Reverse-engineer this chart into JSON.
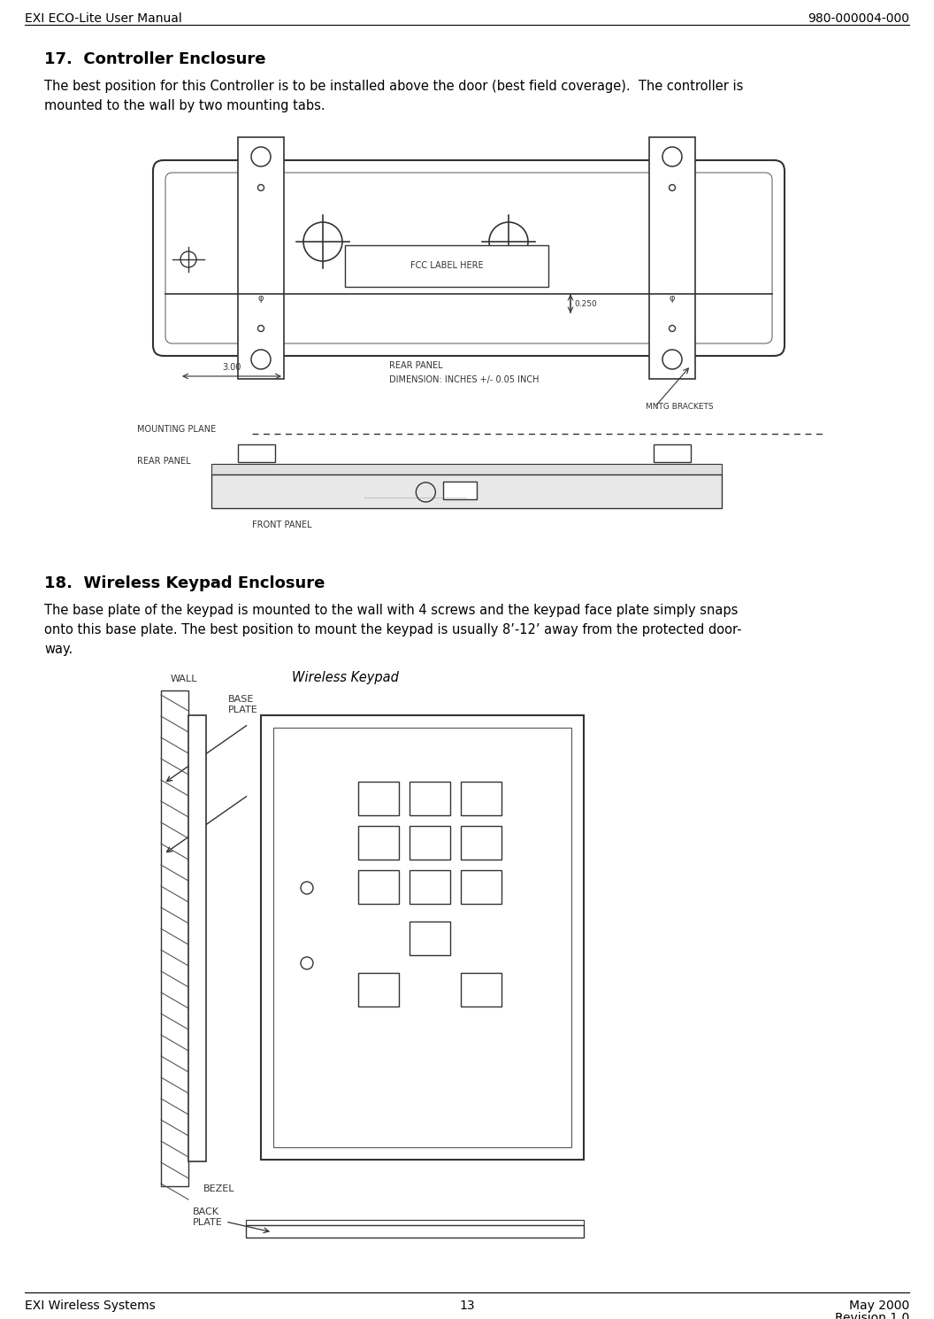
{
  "title_left": "EXI ECO-Lite User Manual",
  "title_right": "980-000004-000",
  "footer_left": "EXI Wireless Systems",
  "footer_center": "13",
  "footer_right1": "May 2000",
  "footer_right2": "Revision 1.0",
  "section17_title": "17.  Controller Enclosure",
  "section17_text1": "The best position for this Controller is to be installed above the door (best field coverage).  The controller is",
  "section17_text2": "mounted to the wall by two mounting tabs.",
  "section18_title": "18.  Wireless Keypad Enclosure",
  "section18_text1": "The base plate of the keypad is mounted to the wall with 4 screws and the keypad face plate simply snaps",
  "section18_text2": "onto this base plate. The best position to mount the keypad is usually 8’-12’ away from the protected door-",
  "section18_text3": "way.",
  "wireless_keypad_label": "Wireless Keypad",
  "bg_color": "#ffffff",
  "text_color": "#000000",
  "draw_color": "#333333",
  "draw_color2": "#555555"
}
